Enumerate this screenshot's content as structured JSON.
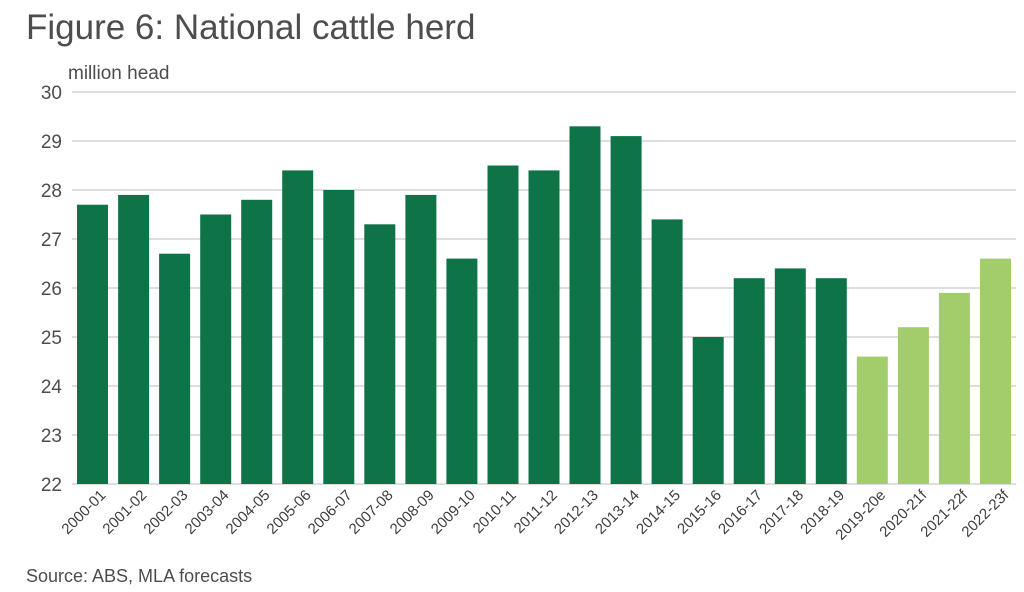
{
  "title": "Figure 6: National cattle herd",
  "source": "Source: ABS, MLA forecasts",
  "chart_data": {
    "type": "bar",
    "title": "Figure 6: National cattle herd",
    "ylabel": "million head",
    "xlabel": "",
    "ylim": [
      22,
      30
    ],
    "yticks": [
      22,
      23,
      24,
      25,
      26,
      27,
      28,
      29,
      30
    ],
    "grid": true,
    "categories": [
      "2000-01",
      "2001-02",
      "2002-03",
      "2003-04",
      "2004-05",
      "2005-06",
      "2006-07",
      "2007-08",
      "2008-09",
      "2009-10",
      "2010-11",
      "2011-12",
      "2012-13",
      "2013-14",
      "2014-15",
      "2015-16",
      "2016-17",
      "2017-18",
      "2018-19",
      "2019-20e",
      "2020-21f",
      "2021-22f",
      "2022-23f"
    ],
    "values": [
      27.7,
      27.9,
      26.7,
      27.5,
      27.8,
      28.4,
      28.0,
      27.3,
      27.9,
      26.6,
      28.5,
      28.4,
      29.3,
      29.1,
      27.4,
      25.0,
      26.2,
      26.4,
      26.2,
      24.6,
      25.2,
      25.9,
      26.6
    ],
    "colors": {
      "actual": "#0e7448",
      "forecast": "#a3cc6a",
      "grid": "#bdbdbd"
    },
    "forecast_categories": [
      "2019-20e",
      "2020-21f",
      "2021-22f",
      "2022-23f"
    ]
  }
}
